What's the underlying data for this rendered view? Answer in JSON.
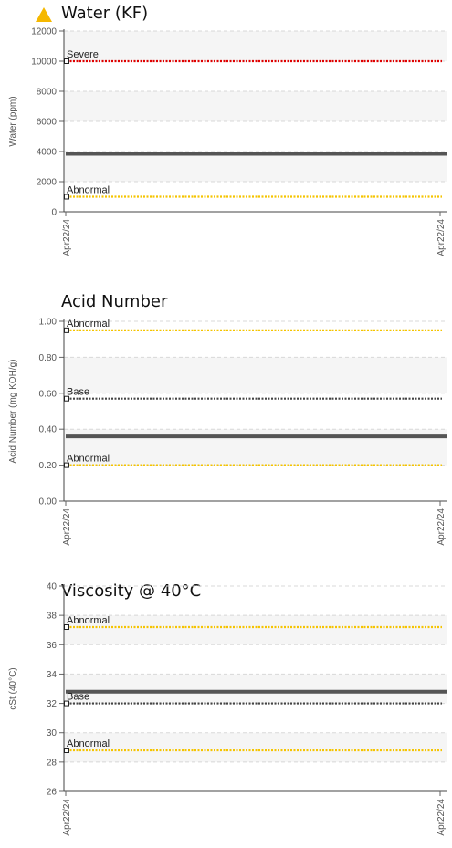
{
  "charts": [
    {
      "title": "Water (KF)",
      "warning_icon": "warning-triangle-icon",
      "warning_color": "#f5b800",
      "chart_data": {
        "type": "line",
        "ylabel": "Water (ppm)",
        "ylim": [
          0,
          12000
        ],
        "yticks": [
          "0",
          "2000",
          "4000",
          "6000",
          "8000",
          "10000",
          "12000"
        ],
        "ytick_values": [
          0,
          2000,
          4000,
          6000,
          8000,
          10000,
          12000
        ],
        "xticks": [
          "Apr22/24",
          "Apr22/24"
        ],
        "series": [
          {
            "values": [
              3850,
              3850
            ],
            "color": "#555555"
          }
        ],
        "reference_lines": [
          {
            "label": "Severe",
            "value": 10000,
            "color": "#e00000"
          },
          {
            "label": "Abnormal",
            "value": 1000,
            "color": "#f5c400"
          }
        ]
      }
    },
    {
      "title": "Acid Number",
      "chart_data": {
        "type": "line",
        "ylabel": "Acid Number (mg KOH/g)",
        "ylim": [
          0,
          1.0
        ],
        "yticks": [
          "0.00",
          "0.20",
          "0.40",
          "0.60",
          "0.80",
          "1.00"
        ],
        "ytick_values": [
          0,
          0.2,
          0.4,
          0.6,
          0.8,
          1.0
        ],
        "xticks": [
          "Apr22/24",
          "Apr22/24"
        ],
        "series": [
          {
            "values": [
              0.36,
              0.36
            ],
            "color": "#555555"
          }
        ],
        "reference_lines": [
          {
            "label": "Abnormal",
            "value": 0.95,
            "color": "#f5c400"
          },
          {
            "label": "Base",
            "value": 0.57,
            "color": "#444444"
          },
          {
            "label": "Abnormal",
            "value": 0.2,
            "color": "#f5c400"
          }
        ]
      }
    },
    {
      "title": "Viscosity @ 40°C",
      "chart_data": {
        "type": "line",
        "ylabel": "cSt (40°C)",
        "ylim": [
          26,
          40
        ],
        "yticks": [
          "26",
          "28",
          "30",
          "32",
          "34",
          "36",
          "38",
          "40"
        ],
        "ytick_values": [
          26,
          28,
          30,
          32,
          34,
          36,
          38,
          40
        ],
        "xticks": [
          "Apr22/24",
          "Apr22/24"
        ],
        "series": [
          {
            "values": [
              32.8,
              32.8
            ],
            "color": "#555555"
          }
        ],
        "reference_lines": [
          {
            "label": "Abnormal",
            "value": 37.2,
            "color": "#f5c400"
          },
          {
            "label": "Base",
            "value": 32.0,
            "color": "#444444"
          },
          {
            "label": "Abnormal",
            "value": 28.8,
            "color": "#f5c400"
          }
        ]
      }
    }
  ]
}
